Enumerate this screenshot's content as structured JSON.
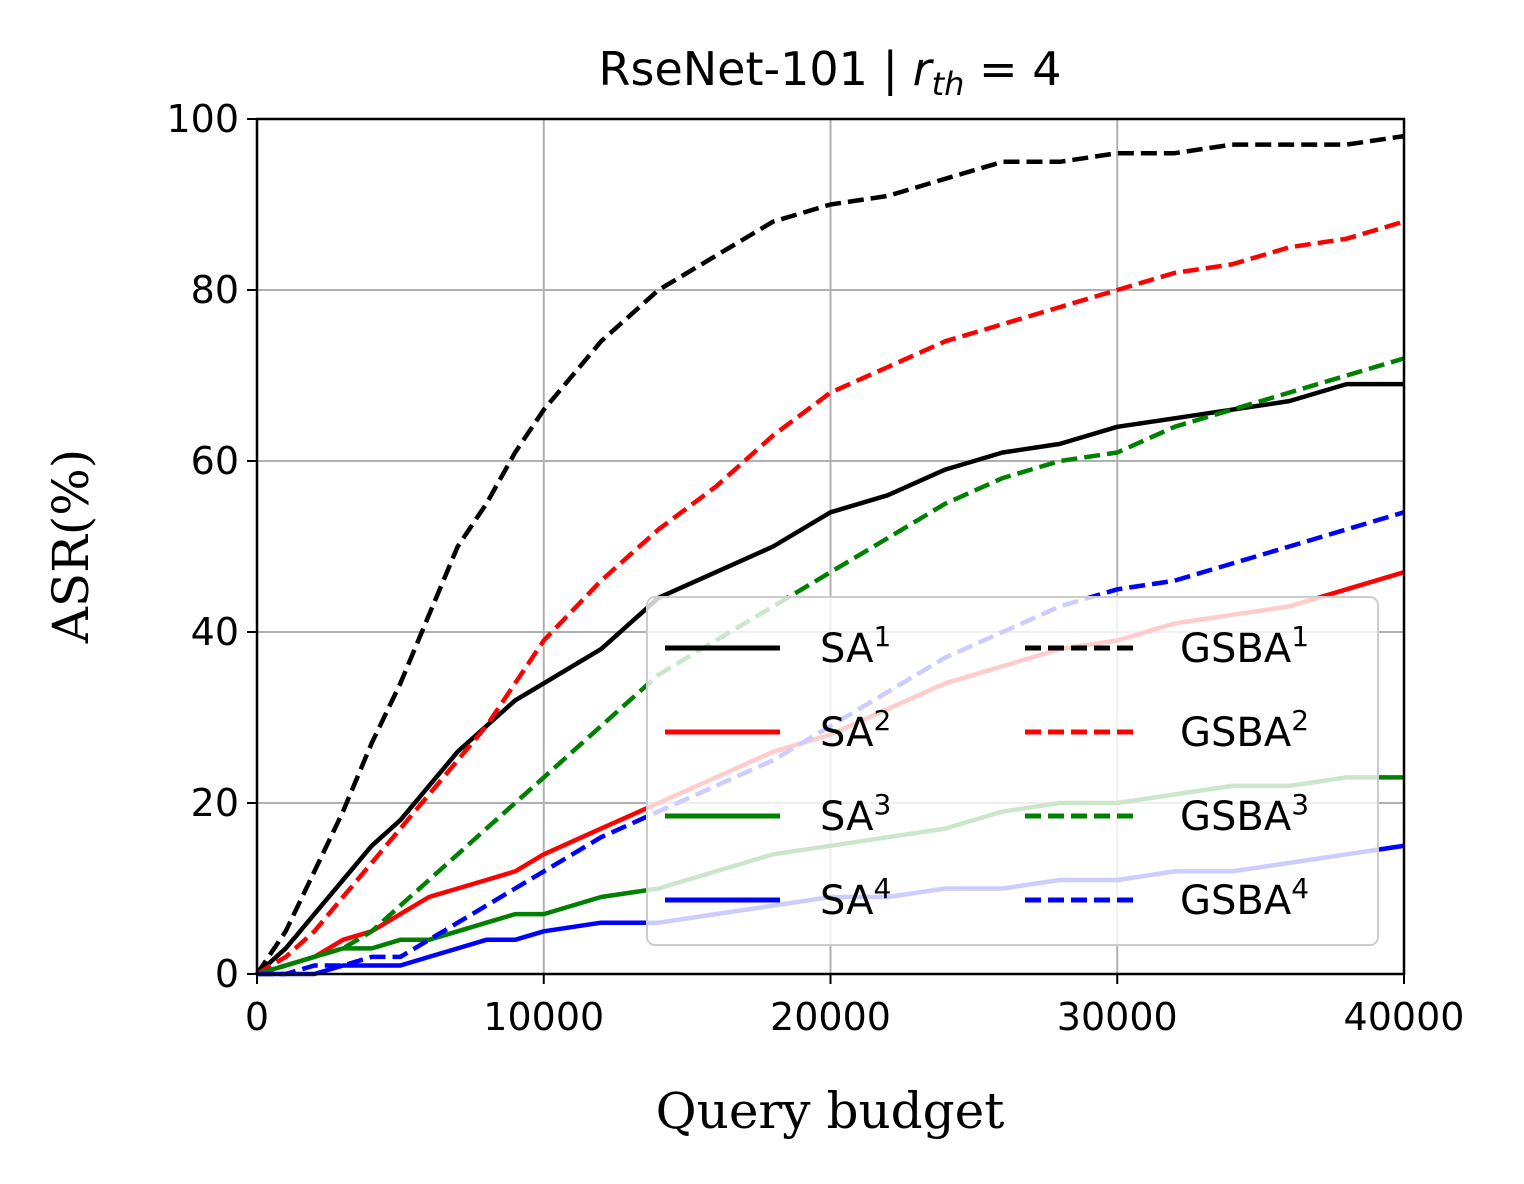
{
  "chart_data": {
    "type": "line",
    "title_main": "RseNet-101  |  ",
    "title_var": "r",
    "title_sub": "th",
    "title_rest": " = 4",
    "xlabel": "Query budget",
    "ylabel": "ASR(%)",
    "xlim": [
      0,
      40000
    ],
    "ylim": [
      0,
      100
    ],
    "xticks": [
      0,
      10000,
      20000,
      30000,
      40000
    ],
    "yticks": [
      0,
      20,
      40,
      60,
      80,
      100
    ],
    "grid": true,
    "legend_position": "lower-right",
    "legend_columns": 2,
    "series": [
      {
        "name": "SA",
        "sup": "1",
        "color": "#000000",
        "dash": "solid",
        "x": [
          0,
          1000,
          2000,
          3000,
          4000,
          5000,
          6000,
          7000,
          8000,
          9000,
          10000,
          12000,
          14000,
          16000,
          18000,
          20000,
          22000,
          24000,
          26000,
          28000,
          30000,
          32000,
          34000,
          36000,
          38000,
          40000
        ],
        "y": [
          0,
          3,
          7,
          11,
          15,
          18,
          22,
          26,
          29,
          32,
          34,
          38,
          44,
          47,
          50,
          54,
          56,
          59,
          61,
          62,
          64,
          65,
          66,
          67,
          69,
          69
        ]
      },
      {
        "name": "SA",
        "sup": "2",
        "color": "#ff0000",
        "dash": "solid",
        "x": [
          0,
          1000,
          2000,
          3000,
          4000,
          5000,
          6000,
          7000,
          8000,
          9000,
          10000,
          12000,
          14000,
          16000,
          18000,
          20000,
          22000,
          24000,
          26000,
          28000,
          30000,
          32000,
          34000,
          36000,
          38000,
          40000
        ],
        "y": [
          0,
          1,
          2,
          4,
          5,
          7,
          9,
          10,
          11,
          12,
          14,
          17,
          20,
          23,
          26,
          28,
          31,
          34,
          36,
          38,
          39,
          41,
          42,
          43,
          45,
          47
        ]
      },
      {
        "name": "SA",
        "sup": "3",
        "color": "#008000",
        "dash": "solid",
        "x": [
          0,
          1000,
          2000,
          3000,
          4000,
          5000,
          6000,
          7000,
          8000,
          9000,
          10000,
          12000,
          14000,
          16000,
          18000,
          20000,
          22000,
          24000,
          26000,
          28000,
          30000,
          32000,
          34000,
          36000,
          38000,
          40000
        ],
        "y": [
          0,
          1,
          2,
          3,
          3,
          4,
          4,
          5,
          6,
          7,
          7,
          9,
          10,
          12,
          14,
          15,
          16,
          17,
          19,
          20,
          20,
          21,
          22,
          22,
          23,
          23
        ]
      },
      {
        "name": "SA",
        "sup": "4",
        "color": "#0000ff",
        "dash": "solid",
        "x": [
          0,
          1000,
          2000,
          3000,
          4000,
          5000,
          6000,
          7000,
          8000,
          9000,
          10000,
          12000,
          14000,
          16000,
          18000,
          20000,
          22000,
          24000,
          26000,
          28000,
          30000,
          32000,
          34000,
          36000,
          38000,
          40000
        ],
        "y": [
          0,
          0,
          0,
          1,
          1,
          1,
          2,
          3,
          4,
          4,
          5,
          6,
          6,
          7,
          8,
          9,
          9,
          10,
          10,
          11,
          11,
          12,
          12,
          13,
          14,
          15
        ]
      },
      {
        "name": "GSBA",
        "sup": "1",
        "color": "#000000",
        "dash": "dashed",
        "x": [
          0,
          1000,
          2000,
          3000,
          4000,
          5000,
          6000,
          7000,
          8000,
          9000,
          10000,
          12000,
          14000,
          16000,
          18000,
          20000,
          22000,
          24000,
          26000,
          28000,
          30000,
          32000,
          34000,
          36000,
          38000,
          40000
        ],
        "y": [
          0,
          5,
          12,
          19,
          27,
          34,
          42,
          50,
          55,
          61,
          66,
          74,
          80,
          84,
          88,
          90,
          91,
          93,
          95,
          95,
          96,
          96,
          97,
          97,
          97,
          98
        ]
      },
      {
        "name": "GSBA",
        "sup": "2",
        "color": "#ff0000",
        "dash": "dashed",
        "x": [
          0,
          1000,
          2000,
          3000,
          4000,
          5000,
          6000,
          7000,
          8000,
          9000,
          10000,
          12000,
          14000,
          16000,
          18000,
          20000,
          22000,
          24000,
          26000,
          28000,
          30000,
          32000,
          34000,
          36000,
          38000,
          40000
        ],
        "y": [
          0,
          2,
          5,
          9,
          13,
          17,
          21,
          25,
          29,
          34,
          39,
          46,
          52,
          57,
          63,
          68,
          71,
          74,
          76,
          78,
          80,
          82,
          83,
          85,
          86,
          88
        ]
      },
      {
        "name": "GSBA",
        "sup": "3",
        "color": "#008000",
        "dash": "dashed",
        "x": [
          0,
          1000,
          2000,
          3000,
          4000,
          5000,
          6000,
          7000,
          8000,
          9000,
          10000,
          12000,
          14000,
          16000,
          18000,
          20000,
          22000,
          24000,
          26000,
          28000,
          30000,
          32000,
          34000,
          36000,
          38000,
          40000
        ],
        "y": [
          0,
          1,
          2,
          3,
          5,
          8,
          11,
          14,
          17,
          20,
          23,
          29,
          35,
          39,
          43,
          47,
          51,
          55,
          58,
          60,
          61,
          64,
          66,
          68,
          70,
          72
        ]
      },
      {
        "name": "GSBA",
        "sup": "4",
        "color": "#0000ff",
        "dash": "dashed",
        "x": [
          0,
          1000,
          2000,
          3000,
          4000,
          5000,
          6000,
          7000,
          8000,
          9000,
          10000,
          12000,
          14000,
          16000,
          18000,
          20000,
          22000,
          24000,
          26000,
          28000,
          30000,
          32000,
          34000,
          36000,
          38000,
          40000
        ],
        "y": [
          0,
          0,
          1,
          1,
          2,
          2,
          4,
          6,
          8,
          10,
          12,
          16,
          19,
          22,
          25,
          29,
          33,
          37,
          40,
          43,
          45,
          46,
          48,
          50,
          52,
          54
        ]
      }
    ]
  }
}
